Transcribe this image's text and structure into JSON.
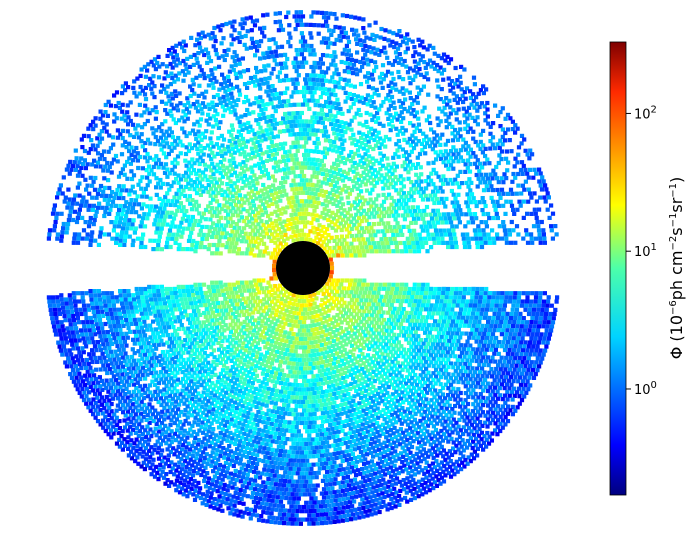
{
  "chart_data": {
    "type": "heatmap",
    "projection": "polar sky map (detector field of view)",
    "colormap": "jet",
    "scale": "log",
    "colorbar": {
      "label_prefix": "Φ (10",
      "label_exp1": "−6",
      "label_mid": "ph cm",
      "label_exp2": "−2",
      "label_s": "s",
      "label_exp3": "−1",
      "label_sr": "sr",
      "label_exp4": "−1",
      "label_suffix": ")",
      "range": [
        0.17,
        330
      ],
      "ticks": [
        {
          "value": 1,
          "base": "10",
          "exp": "0"
        },
        {
          "value": 10,
          "base": "10",
          "exp": "1"
        },
        {
          "value": 100,
          "base": "10",
          "exp": "2"
        }
      ]
    },
    "central_mask_color": "#000000",
    "background": "#ffffff",
    "notes": "Flux increases toward center (~20, yellow/orange), decreasing outward to ~0.3–1 (blue) at the rim; a horizontal gap band excludes the equatorial region."
  }
}
